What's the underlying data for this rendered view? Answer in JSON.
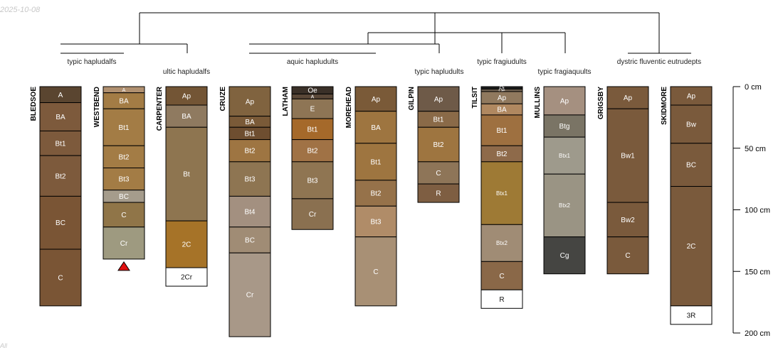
{
  "header": {
    "date_stamp": "2025-10-08",
    "footer_mark": "All"
  },
  "chart_data": {
    "type": "soil-profile-sketch",
    "depth_units": "cm",
    "depth_axis": {
      "max": 200,
      "ticks": [
        {
          "depth": 0,
          "label": "0 cm"
        },
        {
          "depth": 50,
          "label": "50 cm"
        },
        {
          "depth": 100,
          "label": "100 cm"
        },
        {
          "depth": 150,
          "label": "150 cm"
        },
        {
          "depth": 200,
          "label": "200 cm"
        }
      ]
    },
    "taxa_labels": [
      {
        "text": "typic hapludalfs",
        "level": "upper",
        "profiles": [
          0,
          1
        ]
      },
      {
        "text": "ultic hapludalfs",
        "level": "lower",
        "profiles": [
          2
        ]
      },
      {
        "text": "aquic hapludults",
        "level": "upper",
        "profiles": [
          3,
          4,
          5
        ]
      },
      {
        "text": "typic hapludults",
        "level": "lower",
        "profiles": [
          6
        ]
      },
      {
        "text": "typic fragiudults",
        "level": "upper",
        "profiles": [
          7
        ]
      },
      {
        "text": "typic fragiaquults",
        "level": "lower",
        "profiles": [
          8
        ]
      },
      {
        "text": "dystric fluventic eutrudepts",
        "level": "upper",
        "profiles": [
          9,
          10
        ]
      }
    ],
    "profiles": [
      {
        "name": "BLEDSOE",
        "horizons": [
          {
            "name": "A",
            "top": 0,
            "bottom": 13,
            "color": "#5a4530"
          },
          {
            "name": "BA",
            "top": 13,
            "bottom": 36,
            "color": "#7d5a3c"
          },
          {
            "name": "Bt1",
            "top": 36,
            "bottom": 56,
            "color": "#7d5a3c"
          },
          {
            "name": "Bt2",
            "top": 56,
            "bottom": 89,
            "color": "#7d5a3c"
          },
          {
            "name": "BC",
            "top": 89,
            "bottom": 132,
            "color": "#7a5535"
          },
          {
            "name": "C",
            "top": 132,
            "bottom": 178,
            "color": "#7a5535"
          }
        ]
      },
      {
        "name": "WESTBEND",
        "marker": "truncated",
        "horizons": [
          {
            "name": "A",
            "top": 0,
            "bottom": 5,
            "color": "#b09070"
          },
          {
            "name": "BA",
            "top": 5,
            "bottom": 18,
            "color": "#a37c45"
          },
          {
            "name": "Bt1",
            "top": 18,
            "bottom": 48,
            "color": "#a37c45"
          },
          {
            "name": "Bt2",
            "top": 48,
            "bottom": 66,
            "color": "#a37c45"
          },
          {
            "name": "Bt3",
            "top": 66,
            "bottom": 84,
            "color": "#a37c45"
          },
          {
            "name": "BC",
            "top": 84,
            "bottom": 94,
            "color": "#a59c8c"
          },
          {
            "name": "C",
            "top": 94,
            "bottom": 114,
            "color": "#907548"
          },
          {
            "name": "Cr",
            "top": 114,
            "bottom": 140,
            "color": "#9e9a80"
          }
        ]
      },
      {
        "name": "CARPENTER",
        "horizons": [
          {
            "name": "Ap",
            "top": 0,
            "bottom": 15,
            "color": "#735535"
          },
          {
            "name": "BA",
            "top": 15,
            "bottom": 33,
            "color": "#8f7a60"
          },
          {
            "name": "Bt",
            "top": 33,
            "bottom": 109,
            "color": "#8e7550"
          },
          {
            "name": "2C",
            "top": 109,
            "bottom": 147,
            "color": "#a67328"
          },
          {
            "name": "2Cr",
            "top": 147,
            "bottom": 162,
            "color": "#ffffff"
          }
        ]
      },
      {
        "name": "CRUZE",
        "horizons": [
          {
            "name": "Ap",
            "top": 0,
            "bottom": 24,
            "color": "#80633f"
          },
          {
            "name": "BA",
            "top": 24,
            "bottom": 33,
            "color": "#7a5a38"
          },
          {
            "name": "Bt1",
            "top": 33,
            "bottom": 43,
            "color": "#6e4e30"
          },
          {
            "name": "Bt2",
            "top": 43,
            "bottom": 61,
            "color": "#9e7542"
          },
          {
            "name": "Bt3",
            "top": 61,
            "bottom": 89,
            "color": "#8e7552"
          },
          {
            "name": "Bt4",
            "top": 89,
            "bottom": 114,
            "color": "#a39080"
          },
          {
            "name": "BC",
            "top": 114,
            "bottom": 135,
            "color": "#a08c75"
          },
          {
            "name": "Cr",
            "top": 135,
            "bottom": 203,
            "color": "#a89888"
          }
        ]
      },
      {
        "name": "LATHAM",
        "horizons": [
          {
            "name": "Oe",
            "top": 0,
            "bottom": 6,
            "color": "#3a3028"
          },
          {
            "name": "A",
            "top": 6,
            "bottom": 10,
            "color": "#5a4838"
          },
          {
            "name": "E",
            "top": 10,
            "bottom": 26,
            "color": "#8e7555"
          },
          {
            "name": "Bt1",
            "top": 26,
            "bottom": 43,
            "color": "#a5692a"
          },
          {
            "name": "Bt2",
            "top": 43,
            "bottom": 61,
            "color": "#a07245"
          },
          {
            "name": "Bt3",
            "top": 61,
            "bottom": 91,
            "color": "#8f7552"
          },
          {
            "name": "Cr",
            "top": 91,
            "bottom": 116,
            "color": "#8a7050"
          }
        ]
      },
      {
        "name": "MOREHEAD",
        "horizons": [
          {
            "name": "Ap",
            "top": 0,
            "bottom": 20,
            "color": "#7a5a38"
          },
          {
            "name": "BA",
            "top": 20,
            "bottom": 46,
            "color": "#9e7540"
          },
          {
            "name": "Bt1",
            "top": 46,
            "bottom": 76,
            "color": "#9e7540"
          },
          {
            "name": "Bt2",
            "top": 76,
            "bottom": 97,
            "color": "#96724a"
          },
          {
            "name": "Bt3",
            "top": 97,
            "bottom": 122,
            "color": "#b08c68"
          },
          {
            "name": "C",
            "top": 122,
            "bottom": 178,
            "color": "#a89075"
          }
        ]
      },
      {
        "name": "GILPIN",
        "horizons": [
          {
            "name": "Ap",
            "top": 0,
            "bottom": 20,
            "color": "#6e5a48"
          },
          {
            "name": "Bt1",
            "top": 20,
            "bottom": 33,
            "color": "#8a6a48"
          },
          {
            "name": "Bt2",
            "top": 33,
            "bottom": 61,
            "color": "#9e7540"
          },
          {
            "name": "C",
            "top": 61,
            "bottom": 79,
            "color": "#8e7558"
          },
          {
            "name": "R",
            "top": 79,
            "bottom": 94,
            "color": "#7e5e42"
          }
        ]
      },
      {
        "name": "TILSIT",
        "horizons": [
          {
            "name": "Oi",
            "top": 0,
            "bottom": 2,
            "color": "#1e1e1e"
          },
          {
            "name": "Oe",
            "top": 2,
            "bottom": 4,
            "color": "#6e6050"
          },
          {
            "name": "Ap",
            "top": 4,
            "bottom": 14,
            "color": "#90795e"
          },
          {
            "name": "BA",
            "top": 14,
            "bottom": 23,
            "color": "#b08860"
          },
          {
            "name": "Bt1",
            "top": 23,
            "bottom": 48,
            "color": "#9e7040"
          },
          {
            "name": "Bt2",
            "top": 48,
            "bottom": 61,
            "color": "#8e6a4a"
          },
          {
            "name": "Btx1",
            "top": 61,
            "bottom": 112,
            "color": "#9e7a35"
          },
          {
            "name": "Btx2",
            "top": 112,
            "bottom": 142,
            "color": "#a08c75"
          },
          {
            "name": "C",
            "top": 142,
            "bottom": 165,
            "color": "#8a6848"
          },
          {
            "name": "R",
            "top": 165,
            "bottom": 180,
            "color": "#ffffff"
          }
        ]
      },
      {
        "name": "MULLINS",
        "horizons": [
          {
            "name": "Ap",
            "top": 0,
            "bottom": 23,
            "color": "#a59080"
          },
          {
            "name": "Btg",
            "top": 23,
            "bottom": 41,
            "color": "#7a7465"
          },
          {
            "name": "Btx1",
            "top": 41,
            "bottom": 71,
            "color": "#9e9a8c"
          },
          {
            "name": "Btx2",
            "top": 71,
            "bottom": 122,
            "color": "#9a9484"
          },
          {
            "name": "Cg",
            "top": 122,
            "bottom": 152,
            "color": "#454542"
          }
        ]
      },
      {
        "name": "GRIGSBY",
        "horizons": [
          {
            "name": "Ap",
            "top": 0,
            "bottom": 18,
            "color": "#7a5a3c"
          },
          {
            "name": "Bw1",
            "top": 18,
            "bottom": 94,
            "color": "#7a5a3c"
          },
          {
            "name": "Bw2",
            "top": 94,
            "bottom": 122,
            "color": "#7a5a3c"
          },
          {
            "name": "C",
            "top": 122,
            "bottom": 152,
            "color": "#7a5a3c"
          }
        ]
      },
      {
        "name": "SKIDMORE",
        "horizons": [
          {
            "name": "Ap",
            "top": 0,
            "bottom": 15,
            "color": "#7a5a3c"
          },
          {
            "name": "Bw",
            "top": 15,
            "bottom": 46,
            "color": "#7a5a3c"
          },
          {
            "name": "BC",
            "top": 46,
            "bottom": 81,
            "color": "#7a5a3c"
          },
          {
            "name": "2C",
            "top": 81,
            "bottom": 178,
            "color": "#7a5a3c"
          },
          {
            "name": "3R",
            "top": 178,
            "bottom": 193,
            "color": "#ffffff"
          }
        ]
      }
    ]
  }
}
